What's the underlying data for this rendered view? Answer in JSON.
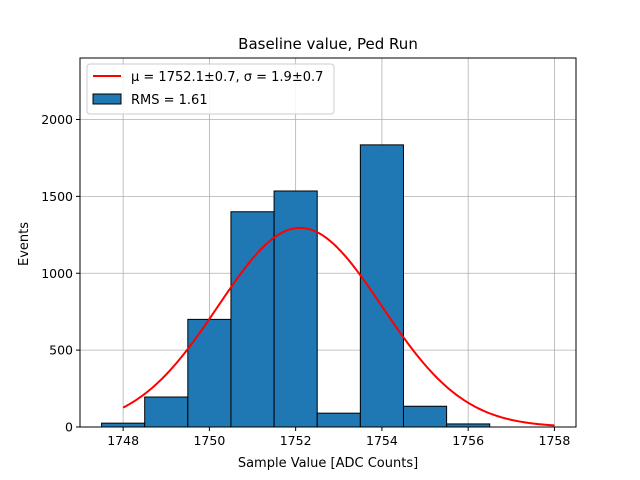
{
  "chart_data": {
    "type": "bar",
    "title": "Baseline value, Ped Run",
    "xlabel": "Sample Value [ADC Counts]",
    "ylabel": "Events",
    "xlim": [
      1747.0,
      1758.5
    ],
    "ylim": [
      0,
      2400
    ],
    "xticks": [
      1748,
      1750,
      1752,
      1754,
      1756,
      1758
    ],
    "yticks": [
      0,
      500,
      1000,
      1500,
      2000
    ],
    "grid": true,
    "legend_position": "top-left",
    "histogram": {
      "bin_edges": [
        1747.5,
        1748.5,
        1749.5,
        1750.5,
        1751.5,
        1752.5,
        1753.5,
        1754.5,
        1755.5,
        1756.5
      ],
      "counts": [
        25,
        195,
        700,
        1400,
        1535,
        90,
        1835,
        135,
        20
      ],
      "color": "#1f77b4",
      "edge_color": "#000000",
      "legend_label": "RMS = 1.61"
    },
    "fit": {
      "type": "gaussian",
      "mu": 1752.1,
      "sigma": 1.9,
      "amplitude": 1295,
      "x_range": [
        1748,
        1758
      ],
      "color": "#ff0000",
      "legend_label": "μ = 1752.1±0.7, σ = 1.9±0.7"
    }
  }
}
